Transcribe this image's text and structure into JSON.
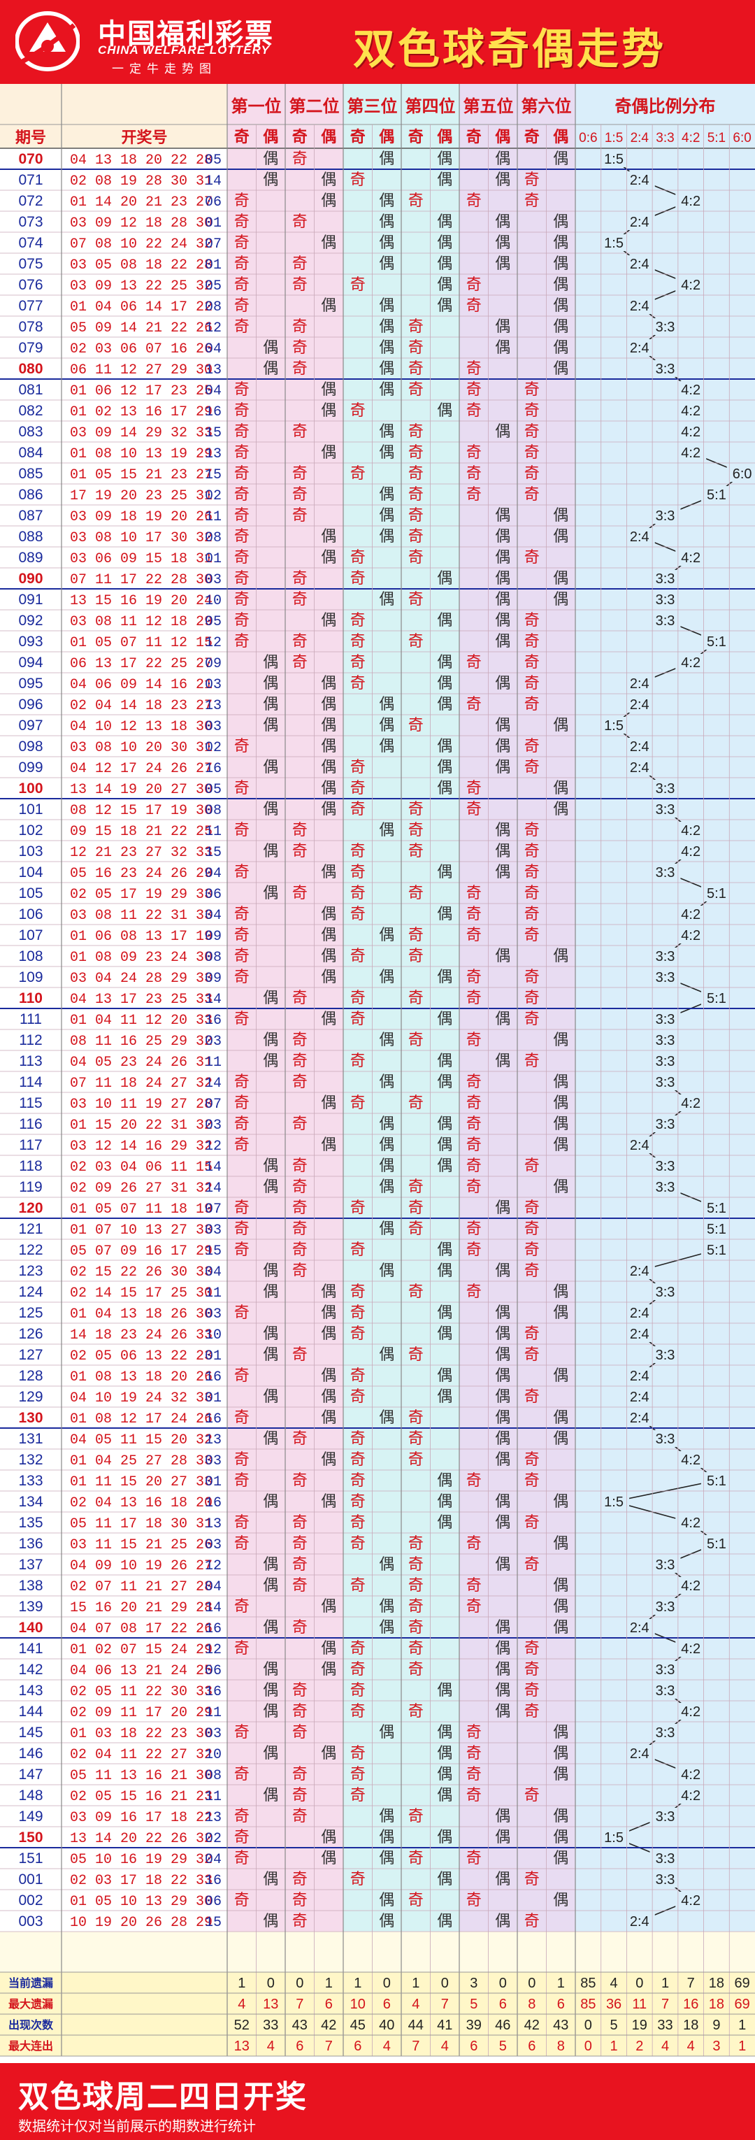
{
  "header": {
    "logo_cn": "中国福利彩票",
    "logo_en": "CHINA WELFARE LOTTERY",
    "logo_slogan": "一定牛走势图",
    "title": "双色球奇偶走势"
  },
  "colors": {
    "brand_red": "#e8131f",
    "title_yellow": "#ffe14d",
    "red_text": "#d4141c",
    "blue_text": "#1a2a9c",
    "odd_text": "#d4141c",
    "even_text": "#333333",
    "pos_bg": [
      "#f6dcec",
      "#f6dcec",
      "#d7f3f4",
      "#d7f3f4",
      "#e8dcf2",
      "#e8dcf2"
    ],
    "ratio_bg": "#daeefa",
    "stats_bg": "#fff7c8"
  },
  "table": {
    "col_issue": "期号",
    "col_numbers": "开奖号",
    "positions": [
      "第一位",
      "第二位",
      "第三位",
      "第四位",
      "第五位",
      "第六位"
    ],
    "odd_label": "奇",
    "even_label": "偶",
    "ratio_title": "奇偶比例分布",
    "ratio_cats": [
      "0:6",
      "1:5",
      "2:4",
      "3:3",
      "4:2",
      "5:1",
      "6:0"
    ]
  },
  "rows": [
    {
      "issue": "070",
      "reds": [
        "04",
        "13",
        "18",
        "20",
        "22",
        "28"
      ],
      "blue": "05"
    },
    {
      "issue": "071",
      "reds": [
        "02",
        "08",
        "19",
        "28",
        "30",
        "31"
      ],
      "blue": "14"
    },
    {
      "issue": "072",
      "reds": [
        "01",
        "14",
        "20",
        "21",
        "23",
        "27"
      ],
      "blue": "06"
    },
    {
      "issue": "073",
      "reds": [
        "03",
        "09",
        "12",
        "18",
        "28",
        "30"
      ],
      "blue": "01"
    },
    {
      "issue": "074",
      "reds": [
        "07",
        "08",
        "10",
        "22",
        "24",
        "32"
      ],
      "blue": "07"
    },
    {
      "issue": "075",
      "reds": [
        "03",
        "05",
        "08",
        "18",
        "22",
        "28"
      ],
      "blue": "01"
    },
    {
      "issue": "076",
      "reds": [
        "03",
        "09",
        "13",
        "22",
        "25",
        "32"
      ],
      "blue": "05"
    },
    {
      "issue": "077",
      "reds": [
        "01",
        "04",
        "06",
        "14",
        "17",
        "22"
      ],
      "blue": "08"
    },
    {
      "issue": "078",
      "reds": [
        "05",
        "09",
        "14",
        "21",
        "22",
        "26"
      ],
      "blue": "12"
    },
    {
      "issue": "079",
      "reds": [
        "02",
        "03",
        "06",
        "07",
        "16",
        "26"
      ],
      "blue": "04"
    },
    {
      "issue": "080",
      "reds": [
        "06",
        "11",
        "12",
        "27",
        "29",
        "30"
      ],
      "blue": "13"
    },
    {
      "issue": "081",
      "reds": [
        "01",
        "06",
        "12",
        "17",
        "23",
        "25"
      ],
      "blue": "04"
    },
    {
      "issue": "082",
      "reds": [
        "01",
        "02",
        "13",
        "16",
        "17",
        "29"
      ],
      "blue": "16"
    },
    {
      "issue": "083",
      "reds": [
        "03",
        "09",
        "14",
        "29",
        "32",
        "33"
      ],
      "blue": "15"
    },
    {
      "issue": "084",
      "reds": [
        "01",
        "08",
        "10",
        "13",
        "19",
        "29"
      ],
      "blue": "13"
    },
    {
      "issue": "085",
      "reds": [
        "01",
        "05",
        "15",
        "21",
        "23",
        "27"
      ],
      "blue": "15"
    },
    {
      "issue": "086",
      "reds": [
        "17",
        "19",
        "20",
        "23",
        "25",
        "31"
      ],
      "blue": "02"
    },
    {
      "issue": "087",
      "reds": [
        "03",
        "09",
        "18",
        "19",
        "20",
        "26"
      ],
      "blue": "11"
    },
    {
      "issue": "088",
      "reds": [
        "03",
        "08",
        "10",
        "17",
        "30",
        "32"
      ],
      "blue": "08"
    },
    {
      "issue": "089",
      "reds": [
        "03",
        "06",
        "09",
        "15",
        "18",
        "31"
      ],
      "blue": "01"
    },
    {
      "issue": "090",
      "reds": [
        "07",
        "11",
        "17",
        "22",
        "28",
        "30"
      ],
      "blue": "03"
    },
    {
      "issue": "091",
      "reds": [
        "13",
        "15",
        "16",
        "19",
        "20",
        "24"
      ],
      "blue": "10"
    },
    {
      "issue": "092",
      "reds": [
        "03",
        "08",
        "11",
        "12",
        "18",
        "29"
      ],
      "blue": "05"
    },
    {
      "issue": "093",
      "reds": [
        "01",
        "05",
        "07",
        "11",
        "12",
        "15"
      ],
      "blue": "12"
    },
    {
      "issue": "094",
      "reds": [
        "06",
        "13",
        "17",
        "22",
        "25",
        "27"
      ],
      "blue": "09"
    },
    {
      "issue": "095",
      "reds": [
        "04",
        "06",
        "09",
        "14",
        "16",
        "21"
      ],
      "blue": "03"
    },
    {
      "issue": "096",
      "reds": [
        "02",
        "04",
        "14",
        "18",
        "23",
        "27"
      ],
      "blue": "13"
    },
    {
      "issue": "097",
      "reds": [
        "04",
        "10",
        "12",
        "13",
        "18",
        "30"
      ],
      "blue": "03"
    },
    {
      "issue": "098",
      "reds": [
        "03",
        "08",
        "10",
        "20",
        "30",
        "31"
      ],
      "blue": "02"
    },
    {
      "issue": "099",
      "reds": [
        "04",
        "12",
        "17",
        "24",
        "26",
        "27"
      ],
      "blue": "16"
    },
    {
      "issue": "100",
      "reds": [
        "13",
        "14",
        "19",
        "20",
        "27",
        "30"
      ],
      "blue": "05"
    },
    {
      "issue": "101",
      "reds": [
        "08",
        "12",
        "15",
        "17",
        "19",
        "30"
      ],
      "blue": "08"
    },
    {
      "issue": "102",
      "reds": [
        "09",
        "15",
        "18",
        "21",
        "22",
        "25"
      ],
      "blue": "11"
    },
    {
      "issue": "103",
      "reds": [
        "12",
        "21",
        "23",
        "27",
        "32",
        "33"
      ],
      "blue": "15"
    },
    {
      "issue": "104",
      "reds": [
        "05",
        "16",
        "23",
        "24",
        "26",
        "29"
      ],
      "blue": "04"
    },
    {
      "issue": "105",
      "reds": [
        "02",
        "05",
        "17",
        "19",
        "29",
        "33"
      ],
      "blue": "06"
    },
    {
      "issue": "106",
      "reds": [
        "03",
        "08",
        "11",
        "22",
        "31",
        "33"
      ],
      "blue": "04"
    },
    {
      "issue": "107",
      "reds": [
        "01",
        "06",
        "08",
        "13",
        "17",
        "19"
      ],
      "blue": "09"
    },
    {
      "issue": "108",
      "reds": [
        "01",
        "08",
        "09",
        "23",
        "24",
        "30"
      ],
      "blue": "08"
    },
    {
      "issue": "109",
      "reds": [
        "03",
        "04",
        "24",
        "28",
        "29",
        "33"
      ],
      "blue": "09"
    },
    {
      "issue": "110",
      "reds": [
        "04",
        "13",
        "17",
        "23",
        "25",
        "33"
      ],
      "blue": "14"
    },
    {
      "issue": "111",
      "reds": [
        "01",
        "04",
        "11",
        "12",
        "20",
        "33"
      ],
      "blue": "16"
    },
    {
      "issue": "112",
      "reds": [
        "08",
        "11",
        "16",
        "25",
        "29",
        "32"
      ],
      "blue": "03"
    },
    {
      "issue": "113",
      "reds": [
        "04",
        "05",
        "23",
        "24",
        "26",
        "31"
      ],
      "blue": "11"
    },
    {
      "issue": "114",
      "reds": [
        "07",
        "11",
        "18",
        "24",
        "27",
        "32"
      ],
      "blue": "14"
    },
    {
      "issue": "115",
      "reds": [
        "03",
        "10",
        "11",
        "19",
        "27",
        "28"
      ],
      "blue": "07"
    },
    {
      "issue": "116",
      "reds": [
        "01",
        "15",
        "20",
        "22",
        "31",
        "32"
      ],
      "blue": "03"
    },
    {
      "issue": "117",
      "reds": [
        "03",
        "12",
        "14",
        "16",
        "29",
        "32"
      ],
      "blue": "12"
    },
    {
      "issue": "118",
      "reds": [
        "02",
        "03",
        "04",
        "06",
        "11",
        "15"
      ],
      "blue": "14"
    },
    {
      "issue": "119",
      "reds": [
        "02",
        "09",
        "26",
        "27",
        "31",
        "32"
      ],
      "blue": "14"
    },
    {
      "issue": "120",
      "reds": [
        "01",
        "05",
        "07",
        "11",
        "18",
        "19"
      ],
      "blue": "07"
    },
    {
      "issue": "121",
      "reds": [
        "01",
        "07",
        "10",
        "13",
        "27",
        "33"
      ],
      "blue": "03"
    },
    {
      "issue": "122",
      "reds": [
        "05",
        "07",
        "09",
        "16",
        "17",
        "29"
      ],
      "blue": "15"
    },
    {
      "issue": "123",
      "reds": [
        "02",
        "15",
        "22",
        "26",
        "30",
        "33"
      ],
      "blue": "04"
    },
    {
      "issue": "124",
      "reds": [
        "02",
        "14",
        "15",
        "17",
        "25",
        "30"
      ],
      "blue": "11"
    },
    {
      "issue": "125",
      "reds": [
        "01",
        "04",
        "13",
        "18",
        "26",
        "30"
      ],
      "blue": "03"
    },
    {
      "issue": "126",
      "reds": [
        "14",
        "18",
        "23",
        "24",
        "26",
        "33"
      ],
      "blue": "10"
    },
    {
      "issue": "127",
      "reds": [
        "02",
        "05",
        "06",
        "13",
        "22",
        "23"
      ],
      "blue": "01"
    },
    {
      "issue": "128",
      "reds": [
        "01",
        "08",
        "13",
        "18",
        "20",
        "26"
      ],
      "blue": "16"
    },
    {
      "issue": "129",
      "reds": [
        "04",
        "10",
        "19",
        "24",
        "32",
        "33"
      ],
      "blue": "01"
    },
    {
      "issue": "130",
      "reds": [
        "01",
        "08",
        "12",
        "17",
        "24",
        "26"
      ],
      "blue": "16"
    },
    {
      "issue": "131",
      "reds": [
        "04",
        "05",
        "11",
        "15",
        "20",
        "32"
      ],
      "blue": "13"
    },
    {
      "issue": "132",
      "reds": [
        "01",
        "04",
        "25",
        "27",
        "28",
        "33"
      ],
      "blue": "03"
    },
    {
      "issue": "133",
      "reds": [
        "01",
        "11",
        "15",
        "20",
        "27",
        "33"
      ],
      "blue": "01"
    },
    {
      "issue": "134",
      "reds": [
        "02",
        "04",
        "13",
        "16",
        "18",
        "20"
      ],
      "blue": "16"
    },
    {
      "issue": "135",
      "reds": [
        "05",
        "11",
        "17",
        "18",
        "30",
        "31"
      ],
      "blue": "13"
    },
    {
      "issue": "136",
      "reds": [
        "03",
        "11",
        "15",
        "21",
        "25",
        "26"
      ],
      "blue": "03"
    },
    {
      "issue": "137",
      "reds": [
        "04",
        "09",
        "10",
        "19",
        "26",
        "27"
      ],
      "blue": "12"
    },
    {
      "issue": "138",
      "reds": [
        "02",
        "07",
        "11",
        "21",
        "27",
        "28"
      ],
      "blue": "04"
    },
    {
      "issue": "139",
      "reds": [
        "15",
        "16",
        "20",
        "21",
        "29",
        "28"
      ],
      "blue": "14"
    },
    {
      "issue": "140",
      "reds": [
        "04",
        "07",
        "08",
        "17",
        "22",
        "26"
      ],
      "blue": "16"
    },
    {
      "issue": "141",
      "reds": [
        "01",
        "02",
        "07",
        "15",
        "24",
        "29"
      ],
      "blue": "12"
    },
    {
      "issue": "142",
      "reds": [
        "04",
        "06",
        "13",
        "21",
        "24",
        "25"
      ],
      "blue": "06"
    },
    {
      "issue": "143",
      "reds": [
        "02",
        "05",
        "11",
        "22",
        "30",
        "33"
      ],
      "blue": "16"
    },
    {
      "issue": "144",
      "reds": [
        "02",
        "09",
        "11",
        "17",
        "20",
        "29"
      ],
      "blue": "11"
    },
    {
      "issue": "145",
      "reds": [
        "01",
        "03",
        "18",
        "22",
        "23",
        "30"
      ],
      "blue": "03"
    },
    {
      "issue": "146",
      "reds": [
        "02",
        "04",
        "11",
        "22",
        "27",
        "32"
      ],
      "blue": "10"
    },
    {
      "issue": "147",
      "reds": [
        "05",
        "11",
        "13",
        "16",
        "21",
        "30"
      ],
      "blue": "08"
    },
    {
      "issue": "148",
      "reds": [
        "02",
        "05",
        "15",
        "16",
        "21",
        "23"
      ],
      "blue": "11"
    },
    {
      "issue": "149",
      "reds": [
        "03",
        "09",
        "16",
        "17",
        "18",
        "22"
      ],
      "blue": "13"
    },
    {
      "issue": "150",
      "reds": [
        "13",
        "14",
        "20",
        "22",
        "26",
        "32"
      ],
      "blue": "02"
    },
    {
      "issue": "151",
      "reds": [
        "05",
        "10",
        "16",
        "19",
        "29",
        "32"
      ],
      "blue": "04"
    },
    {
      "issue": "001",
      "reds": [
        "02",
        "03",
        "17",
        "18",
        "22",
        "33"
      ],
      "blue": "16"
    },
    {
      "issue": "002",
      "reds": [
        "01",
        "05",
        "10",
        "13",
        "29",
        "30"
      ],
      "blue": "06"
    },
    {
      "issue": "003",
      "reds": [
        "10",
        "19",
        "20",
        "26",
        "28",
        "29"
      ],
      "blue": "15"
    }
  ],
  "stats": [
    {
      "label": "当前遗漏",
      "values": [
        "1",
        "0",
        "0",
        "1",
        "1",
        "0",
        "1",
        "0",
        "3",
        "0",
        "0",
        "1",
        "85",
        "4",
        "0",
        "1",
        "7",
        "18",
        "69"
      ]
    },
    {
      "label": "最大遗漏",
      "values": [
        "4",
        "13",
        "7",
        "6",
        "10",
        "6",
        "4",
        "7",
        "5",
        "6",
        "8",
        "6",
        "85",
        "36",
        "11",
        "7",
        "16",
        "18",
        "69"
      ]
    },
    {
      "label": "出现次数",
      "values": [
        "52",
        "33",
        "43",
        "42",
        "45",
        "40",
        "44",
        "41",
        "39",
        "46",
        "42",
        "43",
        "0",
        "5",
        "19",
        "33",
        "18",
        "9",
        "1"
      ]
    },
    {
      "label": "最大连出",
      "values": [
        "13",
        "4",
        "6",
        "7",
        "6",
        "4",
        "7",
        "4",
        "6",
        "5",
        "6",
        "8",
        "0",
        "1",
        "2",
        "4",
        "4",
        "3",
        "1"
      ]
    }
  ],
  "footer": {
    "title": "双色球周二四日开奖",
    "note": "数据统计仅对当前展示的期数进行统计"
  }
}
